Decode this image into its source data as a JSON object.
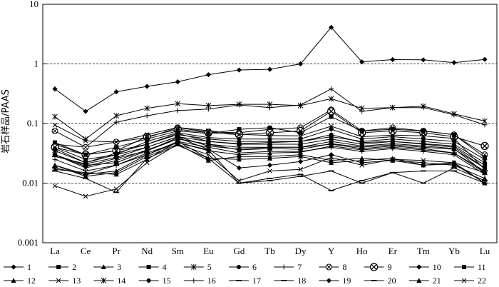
{
  "chart_data": {
    "type": "line",
    "title": "",
    "xlabel": "",
    "ylabel": "岩石样品/PAAS",
    "yscale": "log",
    "ylim": [
      0.001,
      10
    ],
    "yticks": [
      "0.001",
      "0.01",
      "0.1",
      "1",
      "10"
    ],
    "grid": "dashed horizontal at 0.01, 0.1 and 1",
    "legend_position": "bottom",
    "categories": [
      "La",
      "Ce",
      "Pr",
      "Nd",
      "Sm",
      "Eu",
      "Gd",
      "Tb",
      "Dy",
      "Y",
      "Ho",
      "Er",
      "Tm",
      "Yb",
      "Lu"
    ],
    "series": [
      {
        "name": "1",
        "marker": "diamond",
        "values": [
          0.38,
          0.16,
          0.34,
          0.42,
          0.5,
          0.66,
          0.79,
          0.81,
          1.0,
          4.1,
          1.08,
          1.18,
          1.17,
          1.05,
          1.19
        ]
      },
      {
        "name": "2",
        "marker": "square",
        "values": [
          0.03,
          0.02,
          0.022,
          0.035,
          0.055,
          0.045,
          0.036,
          0.038,
          0.037,
          0.046,
          0.04,
          0.044,
          0.04,
          0.037,
          0.018
        ]
      },
      {
        "name": "3",
        "marker": "triangle",
        "values": [
          0.02,
          0.014,
          0.016,
          0.03,
          0.048,
          0.035,
          0.03,
          0.032,
          0.033,
          0.042,
          0.036,
          0.04,
          0.036,
          0.032,
          0.015
        ]
      },
      {
        "name": "4",
        "marker": "square",
        "values": [
          0.04,
          0.025,
          0.03,
          0.04,
          0.06,
          0.05,
          0.045,
          0.045,
          0.045,
          0.055,
          0.045,
          0.05,
          0.046,
          0.042,
          0.02
        ]
      },
      {
        "name": "5",
        "marker": "star",
        "values": [
          0.03,
          0.018,
          0.024,
          0.036,
          0.055,
          0.045,
          0.04,
          0.04,
          0.04,
          0.05,
          0.042,
          0.046,
          0.042,
          0.038,
          0.015
        ]
      },
      {
        "name": "6",
        "marker": "circle",
        "values": [
          0.045,
          0.03,
          0.035,
          0.045,
          0.065,
          0.055,
          0.05,
          0.05,
          0.05,
          0.06,
          0.05,
          0.055,
          0.05,
          0.045,
          0.022
        ]
      },
      {
        "name": "7",
        "marker": "plus",
        "values": [
          0.045,
          0.04,
          0.105,
          0.135,
          0.165,
          0.175,
          0.205,
          0.185,
          0.205,
          0.38,
          0.16,
          0.185,
          0.185,
          0.14,
          0.095
        ]
      },
      {
        "name": "8",
        "marker": "circle-x",
        "values": [
          0.075,
          0.04,
          0.049,
          0.058,
          0.085,
          0.072,
          0.07,
          0.08,
          0.085,
          0.17,
          0.075,
          0.085,
          0.075,
          0.065,
          0.03
        ]
      },
      {
        "name": "9",
        "marker": "circle-x-large",
        "values": [
          0.04,
          0.03,
          0.035,
          0.06,
          0.08,
          0.07,
          0.065,
          0.07,
          0.075,
          0.16,
          0.07,
          0.075,
          0.07,
          0.06,
          0.042
        ]
      },
      {
        "name": "10",
        "marker": "diamond",
        "values": [
          0.035,
          0.022,
          0.03,
          0.05,
          0.07,
          0.058,
          0.055,
          0.055,
          0.055,
          0.08,
          0.055,
          0.06,
          0.055,
          0.05,
          0.025
        ]
      },
      {
        "name": "11",
        "marker": "square",
        "values": [
          0.048,
          0.03,
          0.04,
          0.055,
          0.075,
          0.068,
          0.08,
          0.085,
          0.07,
          0.13,
          0.075,
          0.08,
          0.075,
          0.065,
          0.027
        ]
      },
      {
        "name": "12",
        "marker": "triangle",
        "values": [
          0.02,
          0.013,
          0.015,
          0.028,
          0.045,
          0.024,
          0.028,
          0.028,
          0.03,
          0.024,
          0.026,
          0.024,
          0.022,
          0.02,
          0.012
        ]
      },
      {
        "name": "13",
        "marker": "x",
        "values": [
          0.009,
          0.006,
          0.008,
          0.022,
          0.045,
          0.03,
          0.011,
          0.016,
          0.017,
          0.027,
          0.02,
          0.025,
          0.024,
          0.022,
          0.01
        ]
      },
      {
        "name": "14",
        "marker": "star",
        "values": [
          0.13,
          0.055,
          0.135,
          0.18,
          0.215,
          0.2,
          0.21,
          0.21,
          0.2,
          0.26,
          0.18,
          0.185,
          0.195,
          0.145,
          0.11
        ]
      },
      {
        "name": "15",
        "marker": "circle",
        "values": [
          0.038,
          0.022,
          0.032,
          0.045,
          0.068,
          0.05,
          0.046,
          0.048,
          0.05,
          0.065,
          0.048,
          0.05,
          0.045,
          0.04,
          0.018
        ]
      },
      {
        "name": "16",
        "marker": "plus",
        "values": [
          0.025,
          0.016,
          0.02,
          0.03,
          0.05,
          0.04,
          0.032,
          0.034,
          0.034,
          0.04,
          0.034,
          0.038,
          0.034,
          0.03,
          0.014
        ]
      },
      {
        "name": "17",
        "marker": "dash",
        "values": [
          0.016,
          0.012,
          0.007,
          0.026,
          0.043,
          0.026,
          0.01,
          0.011,
          0.013,
          0.016,
          0.01,
          0.015,
          0.016,
          0.016,
          0.01
        ]
      },
      {
        "name": "18",
        "marker": "dash",
        "values": [
          0.018,
          0.014,
          0.02,
          0.032,
          0.048,
          0.036,
          0.01,
          0.012,
          0.014,
          0.0075,
          0.011,
          0.015,
          0.01,
          0.018,
          0.011
        ]
      },
      {
        "name": "19",
        "marker": "diamond",
        "values": [
          0.03,
          0.019,
          0.026,
          0.035,
          0.058,
          0.037,
          0.018,
          0.02,
          0.023,
          0.03,
          0.022,
          0.024,
          0.02,
          0.022,
          0.015
        ]
      },
      {
        "name": "20",
        "marker": "dash",
        "values": [
          0.028,
          0.021,
          0.027,
          0.04,
          0.06,
          0.042,
          0.037,
          0.04,
          0.04,
          0.045,
          0.038,
          0.042,
          0.038,
          0.032,
          0.016
        ]
      },
      {
        "name": "21",
        "marker": "triangle",
        "values": [
          0.017,
          0.015,
          0.014,
          0.025,
          0.05,
          0.026,
          0.025,
          0.026,
          0.028,
          0.022,
          0.024,
          0.026,
          0.02,
          0.021,
          0.01
        ]
      },
      {
        "name": "22",
        "marker": "x",
        "values": [
          0.094,
          0.051,
          0.049,
          0.065,
          0.086,
          0.076,
          0.066,
          0.063,
          0.062,
          0.09,
          0.06,
          0.064,
          0.062,
          0.056,
          0.017
        ]
      }
    ]
  }
}
